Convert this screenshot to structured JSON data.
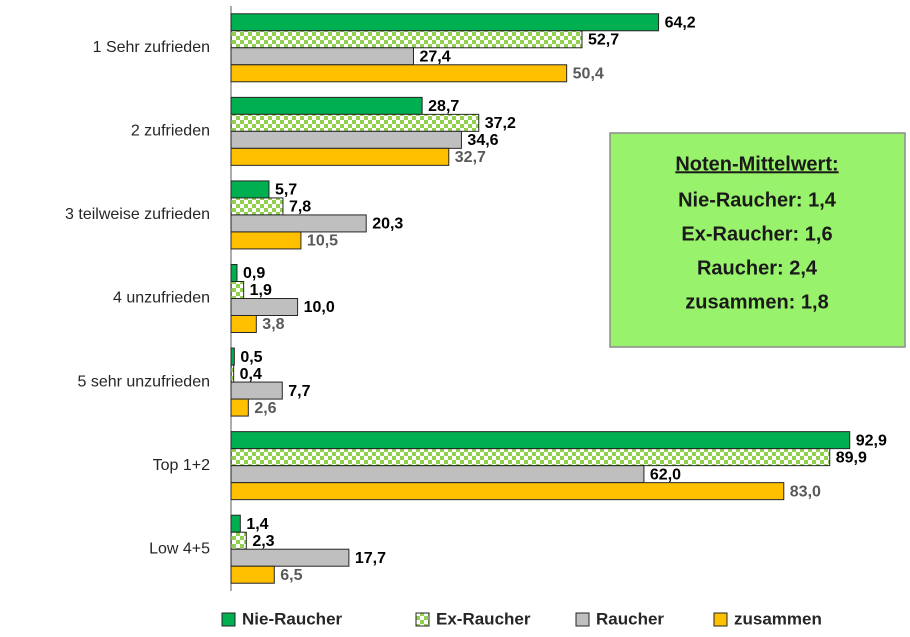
{
  "chart_data": {
    "type": "hbar",
    "categories": [
      "1 Sehr zufrieden",
      "2 zufrieden",
      "3 teilweise zufrieden",
      "4 unzufrieden",
      "5 sehr unzufrieden",
      "Top 1+2",
      "Low 4+5"
    ],
    "xlim": [
      0,
      100
    ],
    "series": [
      {
        "name": "Nie-Raucher",
        "color": "#00b050",
        "label_color": "#000000",
        "values": [
          64.2,
          28.7,
          5.7,
          0.9,
          0.5,
          92.9,
          1.4
        ],
        "value_labels": [
          "64,2",
          "28,7",
          "5,7",
          "0,9",
          "0,5",
          "92,9",
          "1,4"
        ]
      },
      {
        "name": "Ex-Raucher",
        "color": "#92d050",
        "pattern": "checkerboard",
        "label_color": "#000000",
        "values": [
          52.7,
          37.2,
          7.8,
          1.9,
          0.4,
          89.9,
          2.3
        ],
        "value_labels": [
          "52,7",
          "37,2",
          "7,8",
          "1,9",
          "0,4",
          "89,9",
          "2,3"
        ]
      },
      {
        "name": "Raucher",
        "color": "#bfbfbf",
        "label_color": "#000000",
        "values": [
          27.4,
          34.6,
          20.3,
          10.0,
          7.7,
          62.0,
          17.7
        ],
        "value_labels": [
          "27,4",
          "34,6",
          "20,3",
          "10,0",
          "7,7",
          "62,0",
          "17,7"
        ]
      },
      {
        "name": "zusammen",
        "color": "#ffc000",
        "label_color": "#595959",
        "values": [
          50.4,
          32.7,
          10.5,
          3.8,
          2.6,
          83.0,
          6.5
        ],
        "value_labels": [
          "50,4",
          "32,7",
          "10,5",
          "3,8",
          "2,6",
          "83,0",
          "6,5"
        ]
      }
    ],
    "legend": "bottom",
    "annotation": {
      "title": "Noten-Mittelwert:",
      "lines": [
        "Nie-Raucher: 1,4",
        "Ex-Raucher: 1,6",
        "Raucher: 2,4",
        "zusammen: 1,8"
      ],
      "color": "#99f26b"
    }
  }
}
